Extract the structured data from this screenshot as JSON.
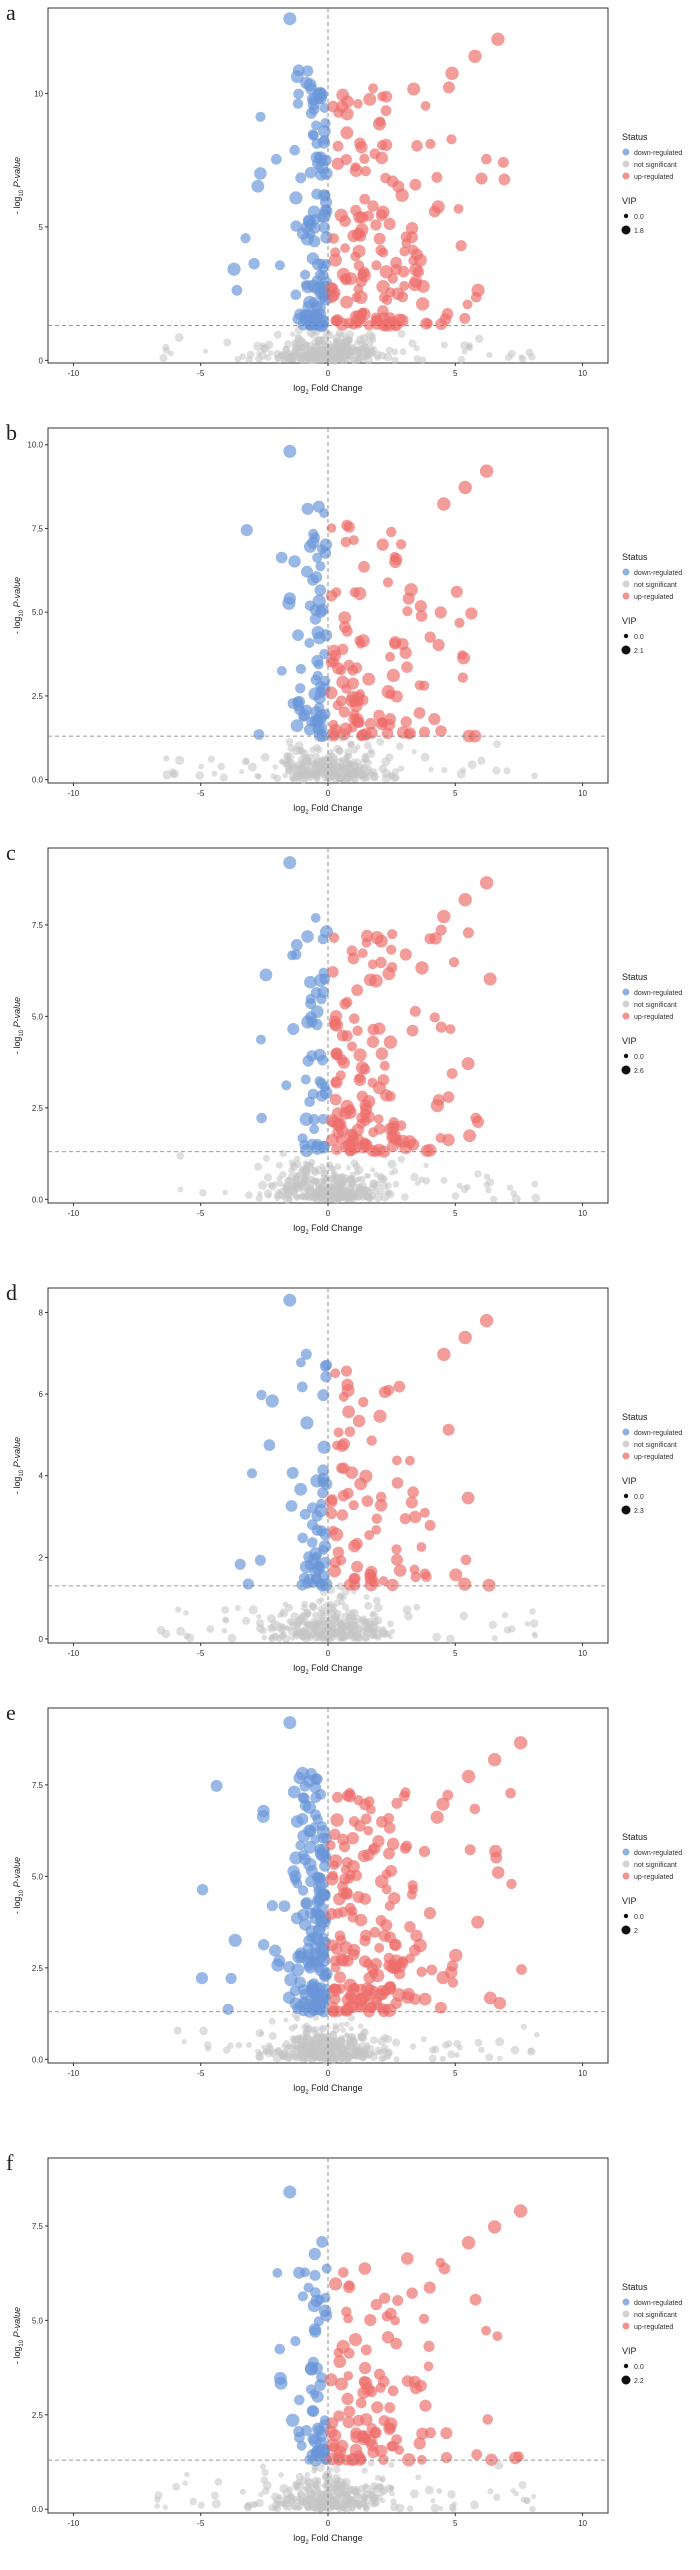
{
  "colors": {
    "down": "#6a97d9",
    "ns": "#c4c4c4",
    "up": "#ee6f6b"
  },
  "legend": {
    "title": "Status",
    "down": "down-regulated",
    "ns": "not significant",
    "up": "up-regulated",
    "vip_title": "VIP"
  },
  "axis": {
    "xlabel_main": "log",
    "xlabel_sub": "2",
    "xlabel_rest": " Fold Change",
    "ylabel_main": "- log",
    "ylabel_sub": "10",
    "ylabel_rest": " P-value"
  },
  "chart_data": [
    {
      "type": "scatter",
      "letter": "a",
      "xlim": [
        -11,
        11
      ],
      "ylim": [
        -0.1,
        13.2
      ],
      "xticks": [
        -10,
        -5,
        0,
        5,
        10
      ],
      "yticks": [
        0,
        5,
        10
      ],
      "ytick_labels": [
        "0",
        "5",
        "10"
      ],
      "vip_labels": [
        "0.0",
        "1.8"
      ],
      "threshold": 1.3,
      "x_cutoff": 0,
      "n_down": 130,
      "n_up": 160,
      "n_ns": 330,
      "seed": 11,
      "xmin_down": -4.2,
      "xmax_up": 7.5,
      "ymax": 12.8
    },
    {
      "type": "scatter",
      "letter": "b",
      "xlim": [
        -11,
        11
      ],
      "ylim": [
        -0.1,
        10.5
      ],
      "xticks": [
        -10,
        -5,
        0,
        5,
        10
      ],
      "yticks": [
        0,
        2.5,
        5,
        7.5,
        10
      ],
      "ytick_labels": [
        "0.0",
        "2.5",
        "5.0",
        "7.5",
        "10.0"
      ],
      "vip_labels": [
        "0.0",
        "2.1"
      ],
      "threshold": 1.3,
      "x_cutoff": 0,
      "n_down": 70,
      "n_up": 110,
      "n_ns": 320,
      "seed": 23,
      "xmin_down": -3.5,
      "xmax_up": 7,
      "ymax": 9.8
    },
    {
      "type": "scatter",
      "letter": "c",
      "xlim": [
        -11,
        11
      ],
      "ylim": [
        -0.1,
        9.6
      ],
      "xticks": [
        -10,
        -5,
        0,
        5,
        10
      ],
      "yticks": [
        0,
        2.5,
        5,
        7.5
      ],
      "ytick_labels": [
        "0.0",
        "2.5",
        "5.0",
        "7.5"
      ],
      "vip_labels": [
        "0.0",
        "2.6"
      ],
      "threshold": 1.3,
      "x_cutoff": 0,
      "n_down": 50,
      "n_up": 140,
      "n_ns": 340,
      "seed": 37,
      "xmin_down": -3,
      "xmax_up": 7,
      "ymax": 9.2
    },
    {
      "type": "scatter",
      "letter": "d",
      "xlim": [
        -11,
        11
      ],
      "ylim": [
        -0.1,
        8.6
      ],
      "xticks": [
        -10,
        -5,
        0,
        5,
        10
      ],
      "yticks": [
        0,
        2,
        4,
        6,
        8
      ],
      "ytick_labels": [
        "0",
        "2",
        "4",
        "6",
        "8"
      ],
      "vip_labels": [
        "0.0",
        "2.3"
      ],
      "threshold": 1.3,
      "x_cutoff": 0,
      "n_down": 60,
      "n_up": 80,
      "n_ns": 300,
      "seed": 41,
      "xmin_down": -3.8,
      "xmax_up": 7,
      "ymax": 8.3
    },
    {
      "type": "scatter",
      "letter": "e",
      "xlim": [
        -11,
        11
      ],
      "ylim": [
        -0.1,
        9.6
      ],
      "xticks": [
        -10,
        -5,
        0,
        5,
        10
      ],
      "yticks": [
        0,
        2.5,
        5,
        7.5
      ],
      "ytick_labels": [
        "0.0",
        "2.5",
        "5.0",
        "7.5"
      ],
      "vip_labels": [
        "0.0",
        "2"
      ],
      "threshold": 1.3,
      "x_cutoff": 0,
      "n_down": 180,
      "n_up": 190,
      "n_ns": 380,
      "seed": 53,
      "xmin_down": -5.5,
      "xmax_up": 8.5,
      "ymax": 9.2
    },
    {
      "type": "scatter",
      "letter": "f",
      "xlim": [
        -11,
        11
      ],
      "ylim": [
        -0.1,
        9.3
      ],
      "xticks": [
        -10,
        -5,
        0,
        5,
        10
      ],
      "yticks": [
        0,
        2.5,
        5,
        7.5
      ],
      "ytick_labels": [
        "0.0",
        "2.5",
        "5.0",
        "7.5"
      ],
      "vip_labels": [
        "0.0",
        "2.2"
      ],
      "threshold": 1.3,
      "x_cutoff": 0,
      "n_down": 60,
      "n_up": 110,
      "n_ns": 330,
      "seed": 67,
      "xmin_down": -3.5,
      "xmax_up": 8.5,
      "ymax": 8.4
    }
  ]
}
